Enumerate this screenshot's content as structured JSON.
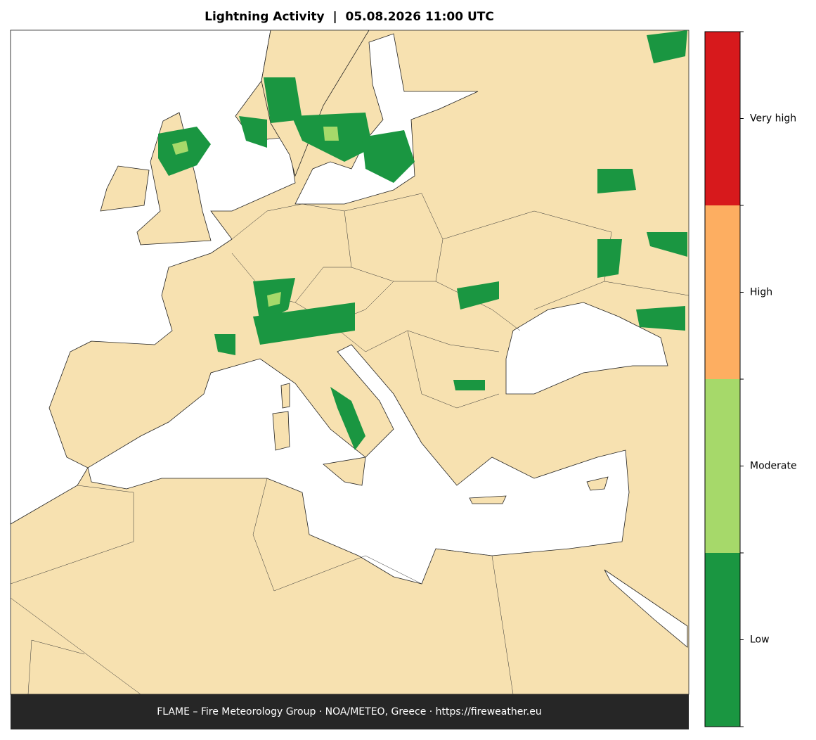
{
  "title": "Lightning Activity  |  05.08.2026 11:00 UTC",
  "footer": "FLAME – Fire Meteorology Group · NOA/METEO, Greece · https://fireweather.eu",
  "legend": {
    "levels": [
      {
        "label": "Low",
        "color": "#1a9641"
      },
      {
        "label": "Moderate",
        "color": "#a6d96a"
      },
      {
        "label": "High",
        "color": "#fdae61"
      },
      {
        "label": "Very high",
        "color": "#d7191c"
      }
    ]
  }
}
